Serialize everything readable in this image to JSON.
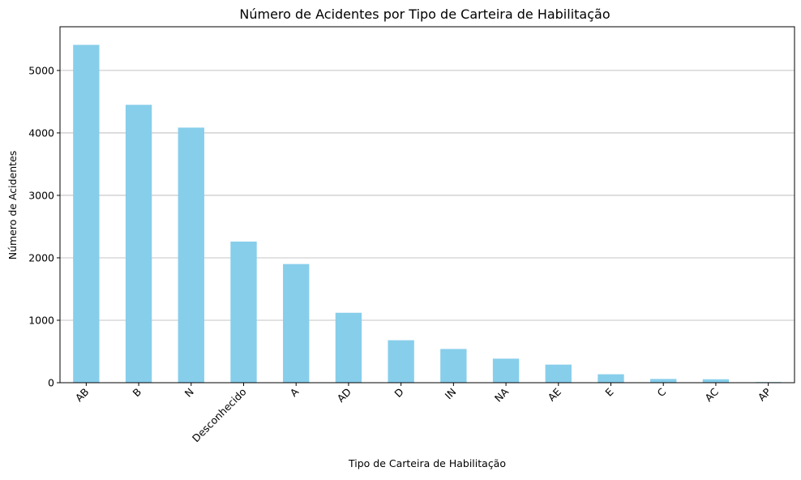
{
  "chart_data": {
    "type": "bar",
    "title": "Número de Acidentes por Tipo de Carteira de Habilitação",
    "xlabel": "Tipo de Carteira de Habilitação",
    "ylabel": "Número de Acidentes",
    "categories": [
      "AB",
      "B",
      "N",
      "Desconhecido",
      "A",
      "AD",
      "D",
      "IN",
      "NA",
      "AE",
      "E",
      "C",
      "AC",
      "AP"
    ],
    "values": [
      5410,
      4450,
      4085,
      2260,
      1900,
      1120,
      680,
      540,
      385,
      290,
      135,
      60,
      55,
      10
    ],
    "ylim": [
      0,
      5700
    ],
    "yticks": [
      0,
      1000,
      2000,
      3000,
      4000,
      5000
    ],
    "grid": "y",
    "legend": "none",
    "colors": {
      "bar": "#87ceeb",
      "grid": "#b0b0b0",
      "axis": "#000000"
    }
  }
}
